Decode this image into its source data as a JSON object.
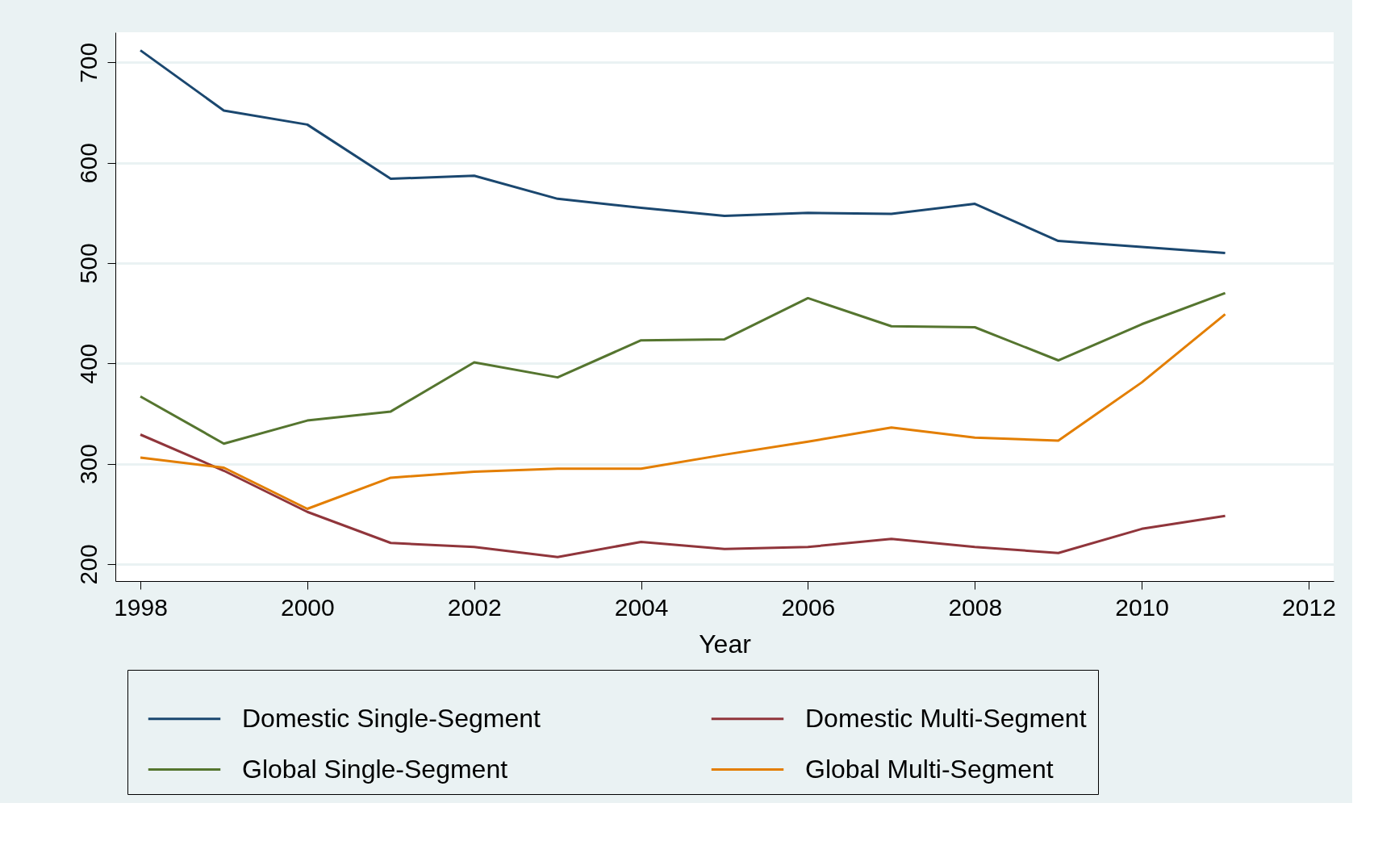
{
  "chart_data": {
    "type": "line",
    "xlabel": "Year",
    "x": [
      1998,
      1999,
      2000,
      2001,
      2002,
      2003,
      2004,
      2005,
      2006,
      2007,
      2008,
      2009,
      2010,
      2011
    ],
    "series": [
      {
        "name": "Domestic Single-Segment",
        "color": "#1a476f",
        "values": [
          712,
          652,
          638,
          584,
          587,
          564,
          555,
          547,
          550,
          549,
          559,
          522,
          516,
          510
        ]
      },
      {
        "name": "Domestic Multi-Segment",
        "color": "#90353b",
        "values": [
          329,
          293,
          252,
          221,
          217,
          207,
          222,
          215,
          217,
          225,
          217,
          211,
          235,
          248
        ]
      },
      {
        "name": "Global Single-Segment",
        "color": "#55752f",
        "values": [
          367,
          320,
          343,
          352,
          401,
          386,
          423,
          424,
          465,
          437,
          436,
          403,
          439,
          470
        ]
      },
      {
        "name": "Global Multi-Segment",
        "color": "#e37e00",
        "values": [
          306,
          296,
          255,
          286,
          292,
          295,
          295,
          309,
          322,
          336,
          326,
          323,
          381,
          449
        ]
      }
    ],
    "xlim": [
      1997.7,
      2012.3
    ],
    "xticks": [
      1998,
      2000,
      2002,
      2004,
      2006,
      2008,
      2010,
      2012
    ],
    "ylim": [
      183,
      730
    ],
    "yticks": [
      200,
      300,
      400,
      500,
      600,
      700
    ],
    "grid": "y",
    "legend": "bottom",
    "marker": "none",
    "line_style": "solid"
  }
}
